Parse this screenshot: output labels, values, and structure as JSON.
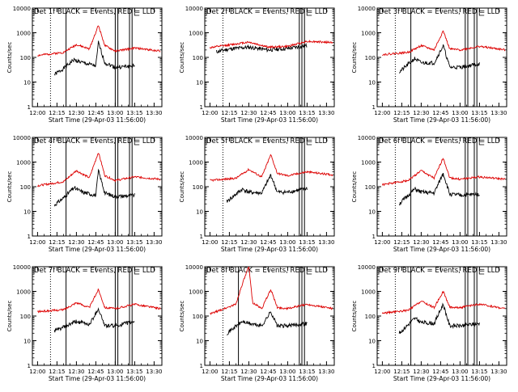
{
  "figure": {
    "colors": {
      "events": "#000000",
      "lld": "#dd0000",
      "axis": "#000000",
      "background": "#ffffff"
    }
  },
  "chart_data": [
    {
      "type": "line",
      "title": "Det 1f BLACK = Events, RED = LLD",
      "xlabel": "Start Time (29-Apr-03 11:56:00)",
      "ylabel": "Counts/sec",
      "x_ticks": [
        "12:00",
        "12:15",
        "12:30",
        "12:45",
        "13:00",
        "13:15",
        "13:30"
      ],
      "y_ticks": [
        "1",
        "10",
        "100",
        "1000",
        "10000"
      ],
      "ylim": [
        1,
        10000
      ],
      "y_scale": "log",
      "markers": {
        "dotted": [
          "12:10"
        ],
        "solid": [
          "12:22",
          "13:00",
          "13:02",
          "13:11",
          "13:13"
        ]
      },
      "series": [
        {
          "name": "Events",
          "color": "#000000",
          "x": [
            "12:13",
            "12:20",
            "12:28",
            "12:35",
            "12:45",
            "12:47",
            "12:52",
            "13:00",
            "13:15"
          ],
          "values": [
            20,
            35,
            80,
            60,
            45,
            400,
            60,
            40,
            45
          ]
        },
        {
          "name": "LLD",
          "color": "#dd0000",
          "x": [
            "12:00",
            "12:20",
            "12:30",
            "12:40",
            "12:47",
            "12:52",
            "13:00",
            "13:15",
            "13:35"
          ],
          "values": [
            120,
            160,
            330,
            220,
            2000,
            300,
            180,
            240,
            180
          ]
        }
      ]
    },
    {
      "type": "line",
      "title": "Det 2f BLACK = Events, RED = LLD",
      "xlabel": "Start Time (29-Apr-03 11:56:00)",
      "ylabel": "Counts/sec",
      "x_ticks": [
        "12:00",
        "12:15",
        "12:30",
        "12:45",
        "13:00",
        "13:15",
        "13:30"
      ],
      "y_ticks": [
        "1",
        "10",
        "100",
        "1000",
        "10000"
      ],
      "ylim": [
        1,
        10000
      ],
      "y_scale": "log",
      "markers": {
        "dotted": [
          "12:10"
        ],
        "solid": [
          "13:09",
          "13:11",
          "13:13"
        ]
      },
      "series": [
        {
          "name": "Events",
          "color": "#000000",
          "x": [
            "12:05",
            "12:15",
            "12:30",
            "12:45",
            "13:00",
            "13:15"
          ],
          "values": [
            170,
            220,
            260,
            200,
            230,
            300
          ]
        },
        {
          "name": "LLD",
          "color": "#dd0000",
          "x": [
            "12:00",
            "12:15",
            "12:30",
            "12:45",
            "13:00",
            "13:15",
            "13:35"
          ],
          "values": [
            250,
            320,
            420,
            260,
            280,
            450,
            400
          ]
        }
      ]
    },
    {
      "type": "line",
      "title": "Det 3f BLACK = Events, RED = LLD",
      "xlabel": "Start Time (29-Apr-03 11:56:00)",
      "ylabel": "Counts/sec",
      "x_ticks": [
        "12:00",
        "12:15",
        "12:30",
        "12:45",
        "13:00",
        "13:15",
        "13:30"
      ],
      "y_ticks": [
        "1",
        "10",
        "100",
        "1000",
        "10000"
      ],
      "ylim": [
        1,
        10000
      ],
      "y_scale": "log",
      "markers": {
        "dotted": [
          "12:10"
        ],
        "solid": [
          "12:22",
          "13:04",
          "13:06",
          "13:11",
          "13:13"
        ]
      },
      "series": [
        {
          "name": "Events",
          "color": "#000000",
          "x": [
            "12:13",
            "12:25",
            "12:30",
            "12:40",
            "12:47",
            "12:52",
            "13:00",
            "13:15"
          ],
          "values": [
            25,
            90,
            60,
            60,
            300,
            40,
            40,
            55
          ]
        },
        {
          "name": "LLD",
          "color": "#dd0000",
          "x": [
            "12:00",
            "12:20",
            "12:30",
            "12:40",
            "12:47",
            "12:52",
            "13:00",
            "13:15",
            "13:35"
          ],
          "values": [
            130,
            160,
            300,
            200,
            1200,
            220,
            200,
            280,
            200
          ]
        }
      ]
    },
    {
      "type": "line",
      "title": "Det 4f BLACK = Events, RED = LLD",
      "xlabel": "Start Time (29-Apr-03 11:56:00)",
      "ylabel": "Counts/sec",
      "x_ticks": [
        "12:00",
        "12:15",
        "12:30",
        "12:45",
        "13:00",
        "13:15",
        "13:30"
      ],
      "y_ticks": [
        "1",
        "10",
        "100",
        "1000",
        "10000"
      ],
      "ylim": [
        1,
        10000
      ],
      "y_scale": "log",
      "markers": {
        "dotted": [
          "12:10"
        ],
        "solid": [
          "12:22",
          "13:00",
          "13:02",
          "13:11",
          "13:13"
        ]
      },
      "series": [
        {
          "name": "Events",
          "color": "#000000",
          "x": [
            "12:13",
            "12:20",
            "12:28",
            "12:35",
            "12:45",
            "12:47",
            "12:52",
            "13:00",
            "13:15"
          ],
          "values": [
            18,
            35,
            90,
            60,
            45,
            450,
            55,
            40,
            45
          ]
        },
        {
          "name": "LLD",
          "color": "#dd0000",
          "x": [
            "12:00",
            "12:20",
            "12:30",
            "12:40",
            "12:47",
            "12:52",
            "13:00",
            "13:15",
            "13:35"
          ],
          "values": [
            110,
            160,
            450,
            230,
            2500,
            280,
            180,
            250,
            200
          ]
        }
      ]
    },
    {
      "type": "line",
      "title": "Det 5f BLACK = Events, RED = LLD",
      "xlabel": "Start Time (29-Apr-03 11:56:00)",
      "ylabel": "Counts/sec",
      "x_ticks": [
        "12:00",
        "12:15",
        "12:30",
        "12:45",
        "13:00",
        "13:15",
        "13:30"
      ],
      "y_ticks": [
        "1",
        "10",
        "100",
        "1000",
        "10000"
      ],
      "ylim": [
        1,
        10000
      ],
      "y_scale": "log",
      "markers": {
        "dotted": [
          "12:10"
        ],
        "solid": [
          "13:09",
          "13:11",
          "13:13"
        ]
      },
      "series": [
        {
          "name": "Events",
          "color": "#000000",
          "x": [
            "12:13",
            "12:25",
            "12:30",
            "12:40",
            "12:47",
            "12:52",
            "13:00",
            "13:15"
          ],
          "values": [
            25,
            80,
            60,
            55,
            300,
            60,
            60,
            85
          ]
        },
        {
          "name": "LLD",
          "color": "#dd0000",
          "x": [
            "12:00",
            "12:20",
            "12:30",
            "12:40",
            "12:47",
            "12:52",
            "13:00",
            "13:15",
            "13:35"
          ],
          "values": [
            180,
            220,
            500,
            250,
            2000,
            350,
            280,
            400,
            300
          ]
        }
      ]
    },
    {
      "type": "line",
      "title": "Det 6f BLACK = Events, RED = LLD",
      "xlabel": "Start Time (29-Apr-03 11:56:00)",
      "ylabel": "Counts/sec",
      "x_ticks": [
        "12:00",
        "12:15",
        "12:30",
        "12:45",
        "13:00",
        "13:15",
        "13:30"
      ],
      "y_ticks": [
        "1",
        "10",
        "100",
        "1000",
        "10000"
      ],
      "ylim": [
        1,
        10000
      ],
      "y_scale": "log",
      "markers": {
        "dotted": [
          "12:10"
        ],
        "solid": [
          "12:22",
          "13:04",
          "13:06",
          "13:11",
          "13:13"
        ]
      },
      "series": [
        {
          "name": "Events",
          "color": "#000000",
          "x": [
            "12:13",
            "12:25",
            "12:30",
            "12:40",
            "12:47",
            "12:52",
            "13:00",
            "13:15"
          ],
          "values": [
            20,
            80,
            60,
            55,
            350,
            50,
            45,
            50
          ]
        },
        {
          "name": "LLD",
          "color": "#dd0000",
          "x": [
            "12:00",
            "12:20",
            "12:30",
            "12:40",
            "12:47",
            "12:52",
            "13:00",
            "13:15",
            "13:35"
          ],
          "values": [
            120,
            180,
            450,
            220,
            1500,
            230,
            200,
            250,
            200
          ]
        }
      ]
    },
    {
      "type": "line",
      "title": "Det 7f BLACK = Events, RED = LLD",
      "xlabel": "Start Time (29-Apr-03 11:56:00)",
      "ylabel": "Counts/sec",
      "x_ticks": [
        "12:00",
        "12:15",
        "12:30",
        "12:45",
        "13:00",
        "13:15",
        "13:30"
      ],
      "y_ticks": [
        "1",
        "10",
        "100",
        "1000",
        "10000"
      ],
      "ylim": [
        1,
        10000
      ],
      "y_scale": "log",
      "markers": {
        "dotted": [
          "12:10"
        ],
        "solid": [
          "12:22",
          "13:00",
          "13:02",
          "13:11",
          "13:13"
        ]
      },
      "series": [
        {
          "name": "Events",
          "color": "#000000",
          "x": [
            "12:13",
            "12:20",
            "12:30",
            "12:40",
            "12:47",
            "12:52",
            "13:00",
            "13:15"
          ],
          "values": [
            25,
            35,
            60,
            45,
            200,
            40,
            40,
            60
          ]
        },
        {
          "name": "LLD",
          "color": "#dd0000",
          "x": [
            "12:00",
            "12:20",
            "12:30",
            "12:40",
            "12:47",
            "12:52",
            "13:00",
            "13:15",
            "13:35"
          ],
          "values": [
            150,
            180,
            350,
            220,
            1200,
            220,
            200,
            300,
            200
          ]
        }
      ]
    },
    {
      "type": "line",
      "title": "Det 8f BLACK = Events, RED = LLD",
      "xlabel": "Start Time (29-Apr-03 11:56:00)",
      "ylabel": "Counts/sec",
      "x_ticks": [
        "12:00",
        "12:15",
        "12:30",
        "12:45",
        "13:00",
        "13:15",
        "13:30"
      ],
      "y_ticks": [
        "1",
        "10",
        "100",
        "1000",
        "10000"
      ],
      "ylim": [
        1,
        10000
      ],
      "y_scale": "log",
      "markers": {
        "dotted": [
          "12:10"
        ],
        "solid": [
          "12:22",
          "13:09",
          "13:11",
          "13:13"
        ]
      },
      "series": [
        {
          "name": "Events",
          "color": "#000000",
          "x": [
            "12:13",
            "12:25",
            "12:30",
            "12:40",
            "12:47",
            "12:52",
            "13:00",
            "13:15"
          ],
          "values": [
            20,
            60,
            50,
            40,
            150,
            40,
            40,
            50
          ]
        },
        {
          "name": "LLD",
          "color": "#dd0000",
          "x": [
            "12:00",
            "12:20",
            "12:25",
            "12:30",
            "12:33",
            "12:40",
            "12:47",
            "12:52",
            "13:00",
            "13:15",
            "13:35"
          ],
          "values": [
            120,
            300,
            2000,
            10000,
            350,
            200,
            1200,
            220,
            200,
            300,
            200
          ]
        }
      ]
    },
    {
      "type": "line",
      "title": "Det 9f BLACK = Events, RED = LLD",
      "xlabel": "Start Time (29-Apr-03 11:56:00)",
      "ylabel": "Counts/sec",
      "x_ticks": [
        "12:00",
        "12:15",
        "12:30",
        "12:45",
        "13:00",
        "13:15",
        "13:30"
      ],
      "y_ticks": [
        "1",
        "10",
        "100",
        "1000",
        "10000"
      ],
      "ylim": [
        1,
        10000
      ],
      "y_scale": "log",
      "markers": {
        "dotted": [
          "12:10"
        ],
        "solid": [
          "12:22",
          "13:04",
          "13:06",
          "13:11",
          "13:13"
        ]
      },
      "series": [
        {
          "name": "Events",
          "color": "#000000",
          "x": [
            "12:13",
            "12:25",
            "12:30",
            "12:40",
            "12:47",
            "12:52",
            "13:00",
            "13:15"
          ],
          "values": [
            20,
            80,
            55,
            50,
            300,
            40,
            40,
            50
          ]
        },
        {
          "name": "LLD",
          "color": "#dd0000",
          "x": [
            "12:00",
            "12:20",
            "12:30",
            "12:40",
            "12:47",
            "12:52",
            "13:00",
            "13:15",
            "13:35"
          ],
          "values": [
            130,
            170,
            400,
            220,
            1000,
            230,
            220,
            300,
            200
          ]
        }
      ]
    }
  ]
}
